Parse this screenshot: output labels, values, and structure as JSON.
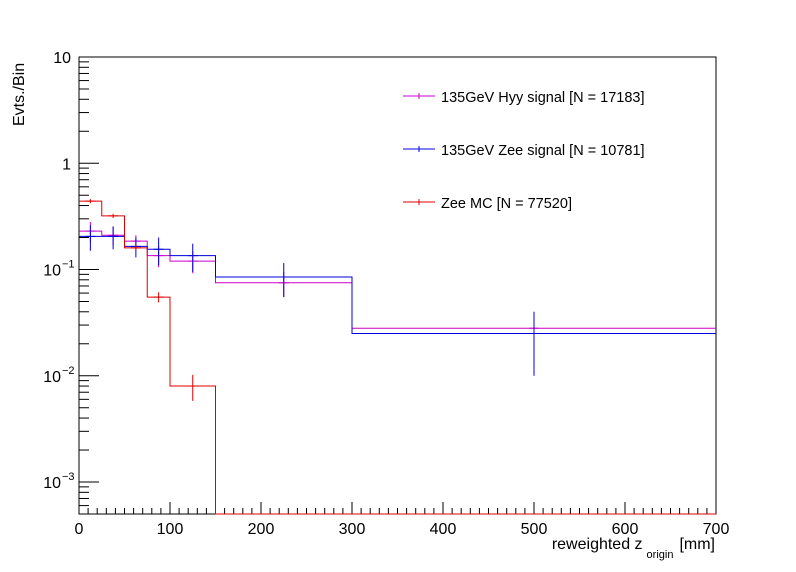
{
  "chart_data": {
    "type": "histogram-step",
    "title": "",
    "xlabel_main": "reweighted z",
    "xlabel_sub": "origin",
    "xlabel_unit": "[mm]",
    "ylabel": "Evts./Bin",
    "xlim": [
      0,
      700
    ],
    "ylim": [
      0.0005,
      10
    ],
    "yscale": "log",
    "x_ticks": [
      "0",
      "100",
      "200",
      "300",
      "400",
      "500",
      "600",
      "700"
    ],
    "y_ticks": [
      {
        "label": "10",
        "value": 10
      },
      {
        "label": "1",
        "value": 1
      },
      {
        "base": "10",
        "exp": "−1",
        "value": 0.1
      },
      {
        "base": "10",
        "exp": "−2",
        "value": 0.01
      },
      {
        "base": "10",
        "exp": "−3",
        "value": 0.001
      }
    ],
    "series": [
      {
        "name": "135GeV Hyy signal [N = 17183]",
        "color": "#cc00cc",
        "bins": [
          [
            0,
            25,
            0.23
          ],
          [
            25,
            50,
            0.21
          ],
          [
            50,
            75,
            0.185
          ],
          [
            75,
            100,
            0.135
          ],
          [
            100,
            150,
            0.12
          ],
          [
            150,
            300,
            0.075
          ],
          [
            300,
            700,
            0.028
          ]
        ],
        "errors": [
          0.05,
          0.04,
          0.025,
          0.03,
          0.028,
          0.02,
          0.011
        ]
      },
      {
        "name": "135GeV Zee signal [N = 10781]",
        "color": "#0000dd",
        "bins": [
          [
            0,
            25,
            0.205
          ],
          [
            25,
            50,
            0.205
          ],
          [
            50,
            75,
            0.165
          ],
          [
            75,
            100,
            0.155
          ],
          [
            100,
            150,
            0.135
          ],
          [
            150,
            300,
            0.085
          ],
          [
            300,
            700,
            0.025
          ]
        ],
        "errors": [
          0.055,
          0.05,
          0.035,
          0.045,
          0.04,
          0.03,
          0.015
        ]
      },
      {
        "name": "Zee MC [N = 77520]",
        "color": "#dd0000",
        "bins": [
          [
            0,
            25,
            0.44
          ],
          [
            25,
            50,
            0.32
          ],
          [
            50,
            75,
            0.16
          ],
          [
            75,
            100,
            0.055
          ],
          [
            100,
            150,
            0.008
          ],
          [
            150,
            300,
            0.0001
          ],
          [
            300,
            700,
            0.0001
          ]
        ],
        "errors": [
          0.02,
          0.015,
          0.01,
          0.006,
          0.0022,
          0,
          0
        ]
      }
    ],
    "legend_position": "top-right"
  }
}
